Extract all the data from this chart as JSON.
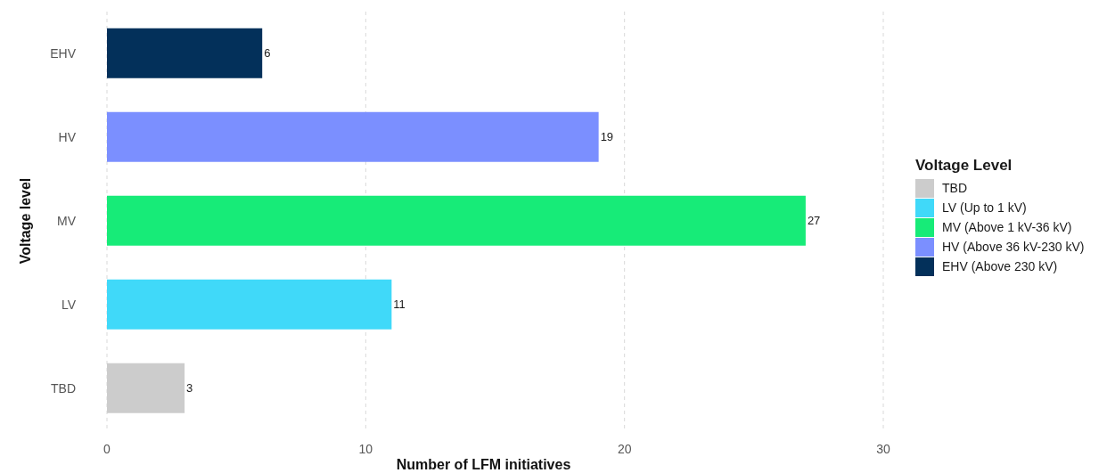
{
  "chart_data": {
    "type": "bar",
    "orientation": "horizontal",
    "stacked": true,
    "xlabel": "Number of LFM initiatives",
    "ylabel": "Voltage level",
    "legend_title": "Voltage Level",
    "categories": [
      "EHV",
      "HV",
      "MV",
      "LV",
      "TBD"
    ],
    "series": [
      {
        "name": "TBD",
        "color": "#cccccc",
        "values": [
          null,
          null,
          null,
          null,
          3
        ]
      },
      {
        "name": "LV (Up to 1 kV)",
        "color": "#40d9f9",
        "values": [
          null,
          null,
          null,
          11,
          null
        ]
      },
      {
        "name": "MV (Above 1 kV-36 kV)",
        "color": "#17eb78",
        "values": [
          null,
          null,
          27,
          null,
          null
        ]
      },
      {
        "name": "HV (Above 36 kV-230 kV)",
        "color": "#7b8fff",
        "values": [
          null,
          19,
          null,
          null,
          null
        ]
      },
      {
        "name": "EHV (Above 230 kV)",
        "color": "#03305a",
        "values": [
          6,
          null,
          null,
          null,
          null
        ]
      }
    ],
    "xlim": [
      0,
      30
    ],
    "xticks": [
      0,
      10,
      20,
      30
    ],
    "grid": "x",
    "legend": "right",
    "data_labels": true
  }
}
